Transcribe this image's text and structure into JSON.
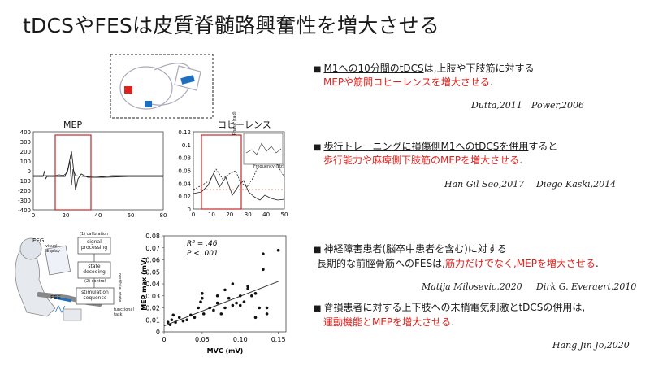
{
  "slide": {
    "title": "tDCSやFESは皮質脊髄路興奮性を増大させる"
  },
  "bullets": [
    {
      "line1_prefix": "",
      "line1_u": "M1への10分間のtDCS",
      "line1_rest": "は,上肢や下肢筋に対する",
      "line2": "MEPや筋間コヒーレンスを増大させる",
      "line2_end": ".",
      "cite_a": "Dutta,2011",
      "cite_b": "Power,2006"
    },
    {
      "line1_u": "歩行トレーニングに損傷側M1へのtDCSを併用",
      "line1_rest": "すると",
      "line2": "歩行能力や麻痺側下肢筋のMEPを増大させる",
      "line2_end": ".",
      "cite_a": "Han Gil Seo,2017",
      "cite_b": "Diego Kaski,2014"
    },
    {
      "line1": "神経障害患者(脳卒中患者を含む)に対する",
      "line2_u": "長期的な前脛骨筋へのFES",
      "line2_mid": "は,",
      "line2_red": "筋力だけでなく,MEPを増大させる",
      "line2_end": ".",
      "cite_a": "Matija Milosevic,2020",
      "cite_b": "Dirk G. Everaert,2010"
    },
    {
      "line1_u": "脊損患者に対する上下肢への末梢電気刺激とtDCSの併用",
      "line1_rest": "は,",
      "line2": "運動機能とMEPを増大させる",
      "line2_end": ".",
      "cite_a": "Hang Jin Jo,2020"
    }
  ],
  "mep_chart": {
    "title": "MEP",
    "y_ticks": [
      "400",
      "300",
      "200",
      "100",
      "0",
      "-100",
      "-200",
      "-300",
      "-400"
    ],
    "x_ticks": [
      "0",
      "20",
      "40",
      "60",
      "80"
    ]
  },
  "coh_chart": {
    "title": "コヒーレンス",
    "y_ticks": [
      "0.12",
      "0.1",
      "0.08",
      "0.06",
      "0.04",
      "0.02",
      "0"
    ],
    "x_ticks": [
      "0",
      "10",
      "20",
      "30",
      "40",
      "50"
    ],
    "inset_ylabel": "Phase (rad)",
    "inset_xlabel": "Frequency (Hz)"
  },
  "fes_diagram": {
    "eeg": "EEG",
    "visual_display": "visual display",
    "fes": "FES",
    "calibration": "(1) calibration",
    "signal_processing": "signal processing",
    "state_decoding": "state decoding",
    "control": "(2) control",
    "stimulation_sequence": "stimulation sequence",
    "functional_task": "functional task",
    "rest_state": "rest/trial state"
  },
  "chart_data": {
    "type": "scatter",
    "xlabel": "MVC (mV)",
    "ylabel": "MEP max (mV)",
    "annotation_r2": "R² = .46",
    "annotation_p": "P < .001",
    "xlim": [
      0,
      0.16
    ],
    "ylim": [
      0,
      0.08
    ],
    "x_ticks": [
      "0",
      "0.05",
      "0.10",
      "0.15"
    ],
    "y_ticks": [
      "0",
      "0.01",
      "0.02",
      "0.03",
      "0.04",
      "0.05",
      "0.06",
      "0.07",
      "0.08"
    ],
    "x": [
      0.005,
      0.008,
      0.01,
      0.012,
      0.015,
      0.02,
      0.025,
      0.03,
      0.035,
      0.04,
      0.045,
      0.048,
      0.05,
      0.05,
      0.052,
      0.06,
      0.065,
      0.07,
      0.07,
      0.075,
      0.08,
      0.08,
      0.085,
      0.09,
      0.09,
      0.095,
      0.1,
      0.1,
      0.105,
      0.11,
      0.11,
      0.115,
      0.12,
      0.12,
      0.125,
      0.13,
      0.13,
      0.135,
      0.135,
      0.15
    ],
    "y": [
      0.008,
      0.006,
      0.01,
      0.014,
      0.008,
      0.012,
      0.009,
      0.01,
      0.014,
      0.012,
      0.02,
      0.025,
      0.028,
      0.032,
      0.015,
      0.02,
      0.018,
      0.024,
      0.03,
      0.015,
      0.035,
      0.02,
      0.028,
      0.022,
      0.04,
      0.024,
      0.03,
      0.022,
      0.025,
      0.036,
      0.038,
      0.03,
      0.032,
      0.012,
      0.02,
      0.052,
      0.065,
      0.015,
      0.02,
      0.068
    ],
    "fit_line": {
      "x": [
        0,
        0.15
      ],
      "y": [
        0.005,
        0.042
      ]
    }
  },
  "colors": {
    "accent_red": "#e0201b",
    "electrode_red": "#e0201b",
    "electrode_blue": "#1f6fbf",
    "frame": "#c62828"
  }
}
